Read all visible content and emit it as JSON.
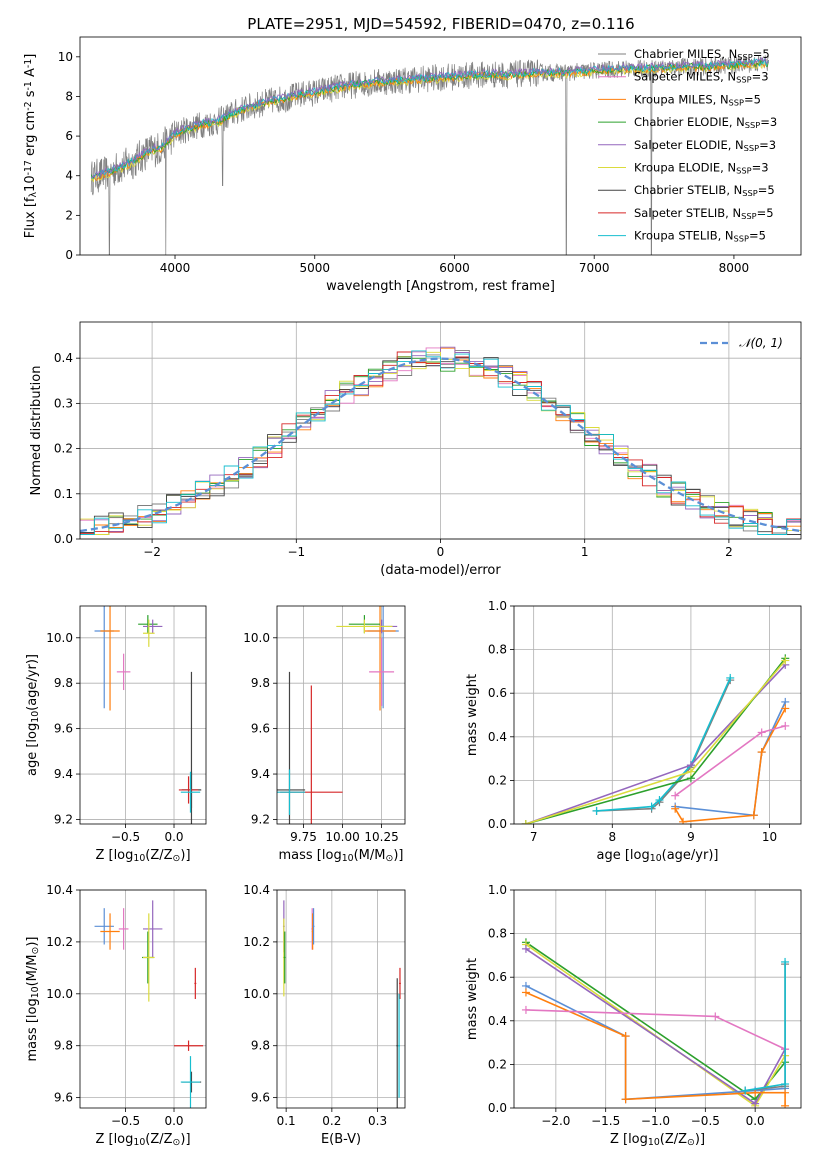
{
  "figure": {
    "title": "PLATE=2951, MJD=54592, FIBERID=0470, z=0.116"
  },
  "colors": [
    "#7f7f7f",
    "#e377c2",
    "#ff7f0e",
    "#2ca02c",
    "#9467bd",
    "#dbdb3d",
    "#444444",
    "#d62728",
    "#17becf",
    "#5b8fd6",
    "#7f7f7f"
  ],
  "chart_data": [
    {
      "id": "spectrum",
      "type": "line",
      "xlabel": "wavelength [Angstrom, rest frame]",
      "ylabel": "Flux [f$_\\lambda$10$^{-17}$ erg cm$^{-2}$ s$^{-1}$ A$^{-1}$]",
      "xlim": [
        3320,
        8480
      ],
      "ylim": [
        0,
        11
      ],
      "xticks": [
        "4000",
        "5000",
        "6000",
        "7000",
        "8000"
      ],
      "xtick_values": [
        4000,
        5000,
        6000,
        7000,
        8000
      ],
      "yticks": [
        "0",
        "2",
        "4",
        "6",
        "8",
        "10"
      ],
      "ytick_values": [
        0,
        2,
        4,
        6,
        8,
        10
      ],
      "legend_position": "upper right",
      "legend": [
        {
          "name": "Chabrier MILES, N",
          "sub": "SSP",
          "tail": "=5",
          "color": "#7f7f7f"
        },
        {
          "name": "Salpeter MILES, N",
          "sub": "SSP",
          "tail": "=3",
          "color": "#e377c2"
        },
        {
          "name": "Kroupa MILES, N",
          "sub": "SSP",
          "tail": "=5",
          "color": "#ff7f0e"
        },
        {
          "name": "Chabrier ELODIE, N",
          "sub": "SSP",
          "tail": "=3",
          "color": "#2ca02c"
        },
        {
          "name": "Salpeter ELODIE, N",
          "sub": "SSP",
          "tail": "=3",
          "color": "#9467bd"
        },
        {
          "name": "Kroupa ELODIE, N",
          "sub": "SSP",
          "tail": "=3",
          "color": "#dbdb3d"
        },
        {
          "name": "Chabrier STELIB, N",
          "sub": "SSP",
          "tail": "=5",
          "color": "#444444"
        },
        {
          "name": "Salpeter STELIB, N",
          "sub": "SSP",
          "tail": "=5",
          "color": "#d62728"
        },
        {
          "name": "Kroupa STELIB, N",
          "sub": "SSP",
          "tail": "=5",
          "color": "#17becf"
        }
      ],
      "data_curve": {
        "x": [
          3400,
          3500,
          3600,
          3700,
          3800,
          3900,
          4000,
          4100,
          4200,
          4300,
          4400,
          4500,
          4600,
          4700,
          4800,
          4900,
          5000,
          5200,
          5400,
          5600,
          5800,
          6000,
          6200,
          6400,
          6600,
          6800,
          7000,
          7200,
          7400,
          7600,
          7800,
          8000,
          8250
        ],
        "y": [
          3.9,
          4.1,
          4.4,
          4.7,
          5.2,
          5.4,
          6.1,
          6.4,
          6.6,
          6.7,
          7.1,
          7.4,
          7.6,
          7.8,
          7.9,
          8.1,
          8.2,
          8.5,
          8.7,
          8.8,
          8.9,
          9.0,
          9.1,
          9.1,
          9.2,
          9.2,
          9.3,
          9.4,
          9.4,
          9.5,
          9.5,
          9.6,
          9.7
        ]
      },
      "absorption_dips": [
        {
          "x": 3530,
          "y": 0.0
        },
        {
          "x": 3934,
          "y": 0.0
        },
        {
          "x": 4340,
          "y": 3.5
        },
        {
          "x": 6800,
          "y": 0.0
        },
        {
          "x": 7410,
          "y": 0.0
        }
      ]
    },
    {
      "id": "residuals",
      "type": "line",
      "xlabel": "(data-model)/error",
      "ylabel": "Normed distribution",
      "xlim": [
        -2.5,
        2.5
      ],
      "ylim": [
        0,
        0.48
      ],
      "xticks": [
        "−2",
        "−1",
        "0",
        "1",
        "2"
      ],
      "xtick_values": [
        -2,
        -1,
        0,
        1,
        2
      ],
      "yticks": [
        "0.0",
        "0.1",
        "0.2",
        "0.3",
        "0.4"
      ],
      "ytick_values": [
        0,
        0.1,
        0.2,
        0.3,
        0.4
      ],
      "legend_position": "upper right",
      "legend": [
        {
          "name": "𝒩(0, 1)",
          "color": "#5b8fd6"
        }
      ],
      "gaussian": {
        "mean": 0,
        "sigma": 1,
        "range": [
          -2.5,
          2.5
        ]
      },
      "histogram": {
        "bin_width": 0.1,
        "range": [
          -2.5,
          2.5
        ],
        "series_count": 9
      }
    },
    {
      "id": "age-vs-Z",
      "type": "scatter",
      "xlabel": "Z [log$_{10}$($Z$/$Z_\\odot$)]",
      "ylabel": "age  [log$_{10}$($age$/$yr$)]",
      "xlim": [
        -0.97,
        0.33
      ],
      "ylim": [
        9.18,
        10.14
      ],
      "xticks": [
        "−0.5",
        "0.0"
      ],
      "xtick_values": [
        -0.5,
        0.0
      ],
      "yticks": [
        "9.2",
        "9.4",
        "9.6",
        "9.8",
        "10.0"
      ],
      "ytick_values": [
        9.2,
        9.4,
        9.6,
        9.8,
        10.0
      ],
      "points": [
        {
          "x": -0.72,
          "y": 10.03,
          "xerr": 0.1,
          "yerr": 0.34,
          "color": "#5b8fd6"
        },
        {
          "x": -0.66,
          "y": 10.03,
          "xerr": 0.1,
          "yerr": 0.35,
          "color": "#ff7f0e"
        },
        {
          "x": -0.52,
          "y": 9.85,
          "xerr": 0.07,
          "yerr": 0.08,
          "color": "#e377c2"
        },
        {
          "x": -0.27,
          "y": 10.06,
          "xerr": 0.1,
          "yerr": 0.04,
          "color": "#2ca02c"
        },
        {
          "x": -0.22,
          "y": 10.05,
          "xerr": 0.1,
          "yerr": 0.03,
          "color": "#9467bd"
        },
        {
          "x": -0.26,
          "y": 10.02,
          "xerr": 0.06,
          "yerr": 0.06,
          "color": "#dbdb3d"
        },
        {
          "x": 0.18,
          "y": 9.33,
          "xerr": 0.1,
          "yerr": 0.08,
          "color": "#444444"
        },
        {
          "x": 0.18,
          "y": 9.33,
          "xerr": 0.1,
          "yerr": 0.52,
          "color": "#444444"
        },
        {
          "x": 0.15,
          "y": 9.33,
          "xerr": 0.1,
          "yerr": 0.06,
          "color": "#d62728"
        },
        {
          "x": 0.17,
          "y": 9.32,
          "xerr": 0.1,
          "yerr": 0.09,
          "color": "#17becf"
        }
      ]
    },
    {
      "id": "age-vs-mass",
      "type": "scatter",
      "xlabel": "mass [log$_{10}$($M$/$M_\\odot$)]",
      "ylabel": "",
      "xlim": [
        9.58,
        10.4
      ],
      "ylim": [
        9.18,
        10.14
      ],
      "xticks": [
        "9.75",
        "10.00",
        "10.25"
      ],
      "xtick_values": [
        9.75,
        10.0,
        10.25
      ],
      "yticks": [
        "9.2",
        "9.4",
        "9.6",
        "9.8",
        "10.0"
      ],
      "ytick_values": [
        9.2,
        9.4,
        9.6,
        9.8,
        10.0
      ],
      "points": [
        {
          "x": 10.26,
          "y": 10.03,
          "xerr": 0.1,
          "yerr": 0.34,
          "color": "#5b8fd6"
        },
        {
          "x": 10.24,
          "y": 10.03,
          "xerr": 0.1,
          "yerr": 0.35,
          "color": "#ff7f0e"
        },
        {
          "x": 10.25,
          "y": 9.85,
          "xerr": 0.08,
          "yerr": 0.15,
          "color": "#e377c2"
        },
        {
          "x": 10.14,
          "y": 10.06,
          "xerr": 0.1,
          "yerr": 0.04,
          "color": "#2ca02c"
        },
        {
          "x": 10.25,
          "y": 10.05,
          "xerr": 0.1,
          "yerr": 0.03,
          "color": "#9467bd"
        },
        {
          "x": 10.14,
          "y": 10.05,
          "xerr": 0.18,
          "yerr": 0.03,
          "color": "#dbdb3d"
        },
        {
          "x": 9.66,
          "y": 9.33,
          "xerr": 0.1,
          "yerr": 0.52,
          "color": "#444444"
        },
        {
          "x": 9.8,
          "y": 9.32,
          "xerr": 0.2,
          "yerr": 0.47,
          "color": "#d62728"
        },
        {
          "x": 9.66,
          "y": 9.32,
          "xerr": 0.1,
          "yerr": 0.1,
          "color": "#17becf"
        }
      ]
    },
    {
      "id": "weight-vs-age",
      "type": "line",
      "xlabel": "age  [log$_{10}$($age$/$yr$)]",
      "ylabel": "mass weight",
      "xlim": [
        6.75,
        10.4
      ],
      "ylim": [
        0,
        1.0
      ],
      "xticks": [
        "7",
        "8",
        "9",
        "10"
      ],
      "xtick_values": [
        7,
        8,
        9,
        10
      ],
      "yticks": [
        "0.0",
        "0.2",
        "0.4",
        "0.6",
        "0.8",
        "1.0"
      ],
      "ytick_values": [
        0,
        0.2,
        0.4,
        0.6,
        0.8,
        1.0
      ],
      "series": [
        {
          "color": "#7f7f7f",
          "x": [
            7.8,
            8.5,
            8.6,
            9.0,
            9.5
          ],
          "y": [
            0.06,
            0.07,
            0.1,
            0.26,
            0.66
          ]
        },
        {
          "color": "#17becf",
          "x": [
            7.8,
            8.5,
            8.6,
            9.0,
            9.5
          ],
          "y": [
            0.06,
            0.08,
            0.11,
            0.27,
            0.67
          ]
        },
        {
          "color": "#5b8fd6",
          "x": [
            8.8,
            9.8,
            9.9,
            10.2
          ],
          "y": [
            0.08,
            0.04,
            0.33,
            0.56
          ]
        },
        {
          "color": "#ff7f0e",
          "x": [
            8.8,
            8.9,
            9.8,
            9.9,
            10.2
          ],
          "y": [
            0.07,
            0.01,
            0.04,
            0.33,
            0.53
          ]
        },
        {
          "color": "#e377c2",
          "x": [
            8.8,
            9.9,
            10.2
          ],
          "y": [
            0.13,
            0.42,
            0.45
          ]
        },
        {
          "color": "#9467bd",
          "x": [
            6.9,
            9.0,
            10.2
          ],
          "y": [
            0.0,
            0.27,
            0.73
          ]
        },
        {
          "color": "#2ca02c",
          "x": [
            6.9,
            9.0,
            10.2
          ],
          "y": [
            0.0,
            0.21,
            0.76
          ]
        },
        {
          "color": "#dbdb3d",
          "x": [
            6.9,
            9.0,
            10.2
          ],
          "y": [
            0.0,
            0.24,
            0.75
          ]
        }
      ]
    },
    {
      "id": "mass-vs-Z",
      "type": "scatter",
      "xlabel": "Z [log$_{10}$($Z$/$Z_\\odot$)]",
      "ylabel": "mass [log$_{10}$($M$/$M_\\odot$)]",
      "xlim": [
        -0.97,
        0.33
      ],
      "ylim": [
        9.56,
        10.4
      ],
      "xticks": [
        "−0.5",
        "0.0"
      ],
      "xtick_values": [
        -0.5,
        0.0
      ],
      "yticks": [
        "9.6",
        "9.8",
        "10.0",
        "10.2",
        "10.4"
      ],
      "ytick_values": [
        9.6,
        9.8,
        10.0,
        10.2,
        10.4
      ],
      "points": [
        {
          "x": -0.72,
          "y": 10.26,
          "xerr": 0.1,
          "yerr": 0.07,
          "color": "#5b8fd6"
        },
        {
          "x": -0.66,
          "y": 10.24,
          "xerr": 0.1,
          "yerr": 0.07,
          "color": "#ff7f0e"
        },
        {
          "x": -0.52,
          "y": 10.25,
          "xerr": 0.05,
          "yerr": 0.08,
          "color": "#e377c2"
        },
        {
          "x": -0.27,
          "y": 10.14,
          "xerr": 0.06,
          "yerr": 0.1,
          "color": "#2ca02c"
        },
        {
          "x": -0.22,
          "y": 10.25,
          "xerr": 0.1,
          "yerr": 0.11,
          "color": "#9467bd"
        },
        {
          "x": -0.26,
          "y": 10.14,
          "xerr": 0.06,
          "yerr": 0.17,
          "color": "#dbdb3d"
        },
        {
          "x": 0.18,
          "y": 9.66,
          "xerr": 0.1,
          "yerr": 0.04,
          "color": "#444444"
        },
        {
          "x": 0.15,
          "y": 9.8,
          "xerr": 0.15,
          "yerr": 0.02,
          "color": "#d62728"
        },
        {
          "x": 0.22,
          "y": 10.04,
          "xerr": 0.01,
          "yerr": 0.06,
          "color": "#d62728"
        },
        {
          "x": 0.17,
          "y": 9.66,
          "xerr": 0.1,
          "yerr": 0.1,
          "color": "#17becf"
        }
      ]
    },
    {
      "id": "mass-vs-EBV",
      "type": "scatter",
      "xlabel": "E(B-V)",
      "ylabel": "",
      "xlim": [
        0.08,
        0.36
      ],
      "ylim": [
        9.56,
        10.4
      ],
      "xticks": [
        "0.1",
        "0.2",
        "0.3"
      ],
      "xtick_values": [
        0.1,
        0.2,
        0.3
      ],
      "yticks": [
        "9.6",
        "9.8",
        "10.0",
        "10.2",
        "10.4"
      ],
      "ytick_values": [
        9.6,
        9.8,
        10.0,
        10.2,
        10.4
      ],
      "points": [
        {
          "x": 0.095,
          "y": 10.26,
          "xerr": 0.002,
          "yerr": 0.1,
          "color": "#9467bd"
        },
        {
          "x": 0.095,
          "y": 10.14,
          "xerr": 0.002,
          "yerr": 0.15,
          "color": "#dbdb3d"
        },
        {
          "x": 0.097,
          "y": 10.14,
          "xerr": 0.002,
          "yerr": 0.1,
          "color": "#2ca02c"
        },
        {
          "x": 0.157,
          "y": 10.25,
          "xerr": 0.002,
          "yerr": 0.08,
          "color": "#e377c2"
        },
        {
          "x": 0.158,
          "y": 10.24,
          "xerr": 0.002,
          "yerr": 0.07,
          "color": "#ff7f0e"
        },
        {
          "x": 0.16,
          "y": 10.26,
          "xerr": 0.002,
          "yerr": 0.07,
          "color": "#5b8fd6"
        },
        {
          "x": 0.343,
          "y": 9.8,
          "xerr": 0.002,
          "yerr": 0.26,
          "color": "#444444"
        },
        {
          "x": 0.349,
          "y": 10.04,
          "xerr": 0.002,
          "yerr": 0.06,
          "color": "#d62728"
        },
        {
          "x": 0.347,
          "y": 9.8,
          "xerr": 0.002,
          "yerr": 0.2,
          "color": "#17becf"
        }
      ]
    },
    {
      "id": "weight-vs-Z",
      "type": "line",
      "xlabel": "Z [log$_{10}$($Z$/$Z_\\odot$)]",
      "ylabel": "mass weight",
      "xlim": [
        -2.42,
        0.46
      ],
      "ylim": [
        0,
        1.0
      ],
      "xticks": [
        "−2.0",
        "−1.5",
        "−1.0",
        "−0.5",
        "0.0"
      ],
      "xtick_values": [
        -2.0,
        -1.5,
        -1.0,
        -0.5,
        0.0
      ],
      "yticks": [
        "0.0",
        "0.2",
        "0.4",
        "0.6",
        "0.8",
        "1.0"
      ],
      "ytick_values": [
        0,
        0.2,
        0.4,
        0.6,
        0.8,
        1.0
      ],
      "series": [
        {
          "color": "#2ca02c",
          "x": [
            -2.3,
            0.0,
            0.3
          ],
          "y": [
            0.76,
            0.04,
            0.21
          ]
        },
        {
          "color": "#dbdb3d",
          "x": [
            -2.3,
            0.0,
            0.3
          ],
          "y": [
            0.75,
            0.01,
            0.24
          ]
        },
        {
          "color": "#9467bd",
          "x": [
            -2.3,
            0.0,
            0.3
          ],
          "y": [
            0.73,
            0.02,
            0.27
          ]
        },
        {
          "color": "#5b8fd6",
          "x": [
            -2.3,
            -1.3,
            -1.3,
            0.0,
            0.3
          ],
          "y": [
            0.56,
            0.33,
            0.04,
            0.08,
            0.09
          ]
        },
        {
          "color": "#ff7f0e",
          "x": [
            -2.3,
            -1.3,
            -1.3,
            0.0,
            0.3,
            0.3
          ],
          "y": [
            0.53,
            0.33,
            0.04,
            0.07,
            0.07,
            0.01
          ]
        },
        {
          "color": "#e377c2",
          "x": [
            -2.3,
            -0.4,
            0.3
          ],
          "y": [
            0.45,
            0.42,
            0.27
          ]
        },
        {
          "color": "#7f7f7f",
          "x": [
            -0.1,
            0.3,
            0.3
          ],
          "y": [
            0.08,
            0.1,
            0.66
          ]
        },
        {
          "color": "#17becf",
          "x": [
            -0.1,
            0.3,
            0.3
          ],
          "y": [
            0.08,
            0.11,
            0.67
          ]
        }
      ]
    }
  ]
}
